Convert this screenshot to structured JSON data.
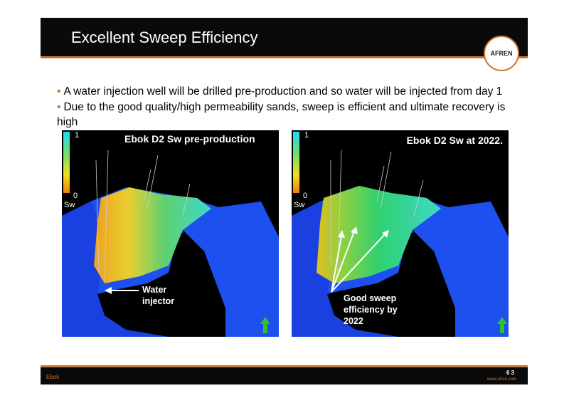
{
  "header": {
    "title": "Excellent Sweep Efficiency",
    "logo": "AFREN"
  },
  "bullets": [
    "A water injection well will be drilled pre-production and so water will be injected from day 1",
    "Due to the good quality/high permeability sands, sweep is efficient and ultimate recovery is high"
  ],
  "panels": [
    {
      "title": "Ebok D2 Sw pre-production",
      "scale": {
        "max": "1",
        "min": "0",
        "label": "Sw"
      },
      "annotation": [
        "Water",
        "injector"
      ]
    },
    {
      "title": "Ebok D2 Sw at 2022.",
      "scale": {
        "max": "1",
        "min": "0",
        "label": "Sw"
      },
      "annotation": [
        "Good sweep",
        "efficiency by",
        "2022"
      ]
    }
  ],
  "footer": {
    "left": "Ebok",
    "page": "63",
    "url": "www.afren.com"
  }
}
